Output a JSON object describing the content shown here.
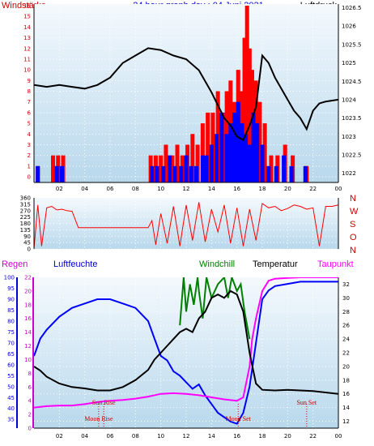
{
  "header": {
    "left_label": "Windstärke",
    "title": "24 hour graph day : 04 Juni 2021",
    "right_label": "Luftdruck"
  },
  "colors": {
    "background_top": "#f4f9fd",
    "background_bottom": "#b8d8ec",
    "gust": "#ff0000",
    "wind": "#0000ff",
    "pressure": "#000000",
    "dir": "#ff0000",
    "humidity": "#0000ff",
    "temperature": "#000000",
    "dewpoint": "#ff00ff",
    "windchill": "#008000",
    "grid": "#ffffff",
    "annotation": "#cc0000"
  },
  "panel3_labels": {
    "rain": "Regen",
    "humidity": "Luftfeuchte",
    "windchill": "Windchill",
    "temperature": "Temperatur",
    "dewpoint": "Taupunkt"
  },
  "compass_labels": [
    "N",
    "W",
    "S",
    "O",
    "N"
  ],
  "annotations": {
    "moon_rise": "Moon Rise",
    "sun_rise": "Sun Rise",
    "moon_set": "Moon Set",
    "sun_set": "Sun Set"
  },
  "chart_data": [
    {
      "type": "line",
      "name": "wind-pressure",
      "title": "24 hour graph day : 04 Juni 2021",
      "x_ticks": [
        "02",
        "04",
        "06",
        "08",
        "10",
        "12",
        "14",
        "16",
        "18",
        "20",
        "22",
        "00"
      ],
      "x_range_hours": [
        0,
        24
      ],
      "left_axis": {
        "label": "Windstärke",
        "range": [
          0,
          16
        ],
        "ticks": [
          0,
          1,
          2,
          3,
          4,
          5,
          6,
          7,
          8,
          9,
          10,
          11,
          12,
          13,
          14,
          15,
          16
        ]
      },
      "right_axis": {
        "label": "Luftdruck",
        "range": [
          1021.75,
          1026.6
        ],
        "ticks": [
          1022,
          1022.5,
          1023,
          1023.5,
          1024,
          1024.5,
          1025,
          1025.5,
          1026,
          1026.5
        ]
      },
      "series": [
        {
          "name": "Windstärke",
          "axis": "left",
          "style": "bars",
          "x": [
            0.3,
            1.8,
            2.2,
            9.3,
            9.7,
            10.2,
            10.7,
            11.1,
            11.6,
            12.0,
            12.4,
            12.8,
            13.3,
            13.6,
            14.0,
            14.4,
            14.8,
            15.2,
            15.5,
            15.8,
            16.1,
            16.4,
            16.7,
            17.0,
            17.3,
            17.6,
            18.0,
            18.5,
            19.1,
            19.7,
            20.3,
            21.4
          ],
          "values": [
            1,
            1,
            1,
            1,
            1,
            1,
            2,
            1,
            1,
            2,
            1,
            1,
            2,
            2,
            3,
            4,
            6,
            4,
            5,
            6,
            7,
            5,
            4,
            3,
            6,
            5,
            3,
            1,
            1,
            2,
            1,
            1
          ]
        },
        {
          "name": "Böen",
          "axis": "left",
          "style": "bars",
          "x": [
            0.3,
            1.5,
            1.9,
            2.3,
            9.2,
            9.6,
            10.0,
            10.4,
            10.9,
            11.3,
            11.7,
            12.1,
            12.5,
            12.9,
            13.3,
            13.7,
            14.1,
            14.5,
            14.9,
            15.2,
            15.5,
            15.8,
            16.1,
            16.4,
            16.6,
            16.8,
            17.0,
            17.2,
            17.5,
            17.8,
            18.2,
            18.7,
            19.2,
            19.8,
            20.4,
            21.5
          ],
          "values": [
            1,
            2,
            2,
            2,
            2,
            2,
            2,
            3,
            2,
            3,
            2,
            3,
            4,
            3,
            5,
            6,
            6,
            8,
            6,
            8,
            9,
            7,
            10,
            8,
            13,
            16,
            12,
            10,
            9,
            7,
            5,
            2,
            2,
            3,
            2,
            1
          ]
        },
        {
          "name": "Luftdruck",
          "axis": "right",
          "style": "line",
          "x": [
            0,
            1,
            2,
            3,
            4,
            5,
            6,
            7,
            8,
            9,
            10,
            11,
            12,
            13,
            14,
            15,
            15.5,
            16,
            16.5,
            17,
            17.5,
            18,
            18.5,
            19,
            19.5,
            20,
            20.5,
            21,
            21.5,
            22,
            22.5,
            23,
            24
          ],
          "values": [
            1024.4,
            1024.35,
            1024.4,
            1024.35,
            1024.3,
            1024.4,
            1024.6,
            1025.0,
            1025.2,
            1025.4,
            1025.35,
            1025.2,
            1025.1,
            1024.8,
            1024.2,
            1023.5,
            1023.3,
            1023.0,
            1022.9,
            1023.3,
            1023.8,
            1025.2,
            1025.0,
            1024.6,
            1024.3,
            1024.0,
            1023.7,
            1023.5,
            1023.2,
            1023.7,
            1023.9,
            1023.95,
            1024.0
          ]
        }
      ]
    },
    {
      "type": "line",
      "name": "wind-direction",
      "x_range_hours": [
        0,
        24
      ],
      "left_axis": {
        "range": [
          0,
          360
        ],
        "ticks": [
          0,
          45,
          90,
          135,
          180,
          225,
          270,
          315,
          360
        ]
      },
      "right_labels": [
        "N",
        "W",
        "S",
        "O",
        "N"
      ],
      "series": [
        {
          "name": "Windrichtung",
          "x": [
            0,
            0.3,
            0.6,
            1.0,
            1.4,
            1.8,
            2.2,
            2.6,
            3.0,
            3.5,
            4,
            5,
            6,
            7,
            8,
            9,
            9.3,
            9.6,
            10,
            10.5,
            11,
            11.5,
            12,
            12.5,
            13,
            13.5,
            14,
            14.5,
            15,
            15.5,
            16,
            16.5,
            17,
            17.5,
            18,
            18.5,
            19,
            19.5,
            20,
            20.5,
            21,
            21.5,
            22,
            22.5,
            23,
            23.5,
            24
          ],
          "values": [
            0,
            310,
            20,
            290,
            300,
            275,
            280,
            270,
            265,
            150,
            150,
            150,
            150,
            150,
            150,
            150,
            200,
            30,
            250,
            40,
            300,
            20,
            310,
            60,
            330,
            50,
            280,
            120,
            310,
            40,
            290,
            20,
            280,
            60,
            320,
            290,
            300,
            270,
            285,
            310,
            300,
            280,
            290,
            20,
            300,
            300,
            310
          ]
        }
      ]
    },
    {
      "type": "line",
      "name": "climate",
      "x_ticks": [
        "02",
        "04",
        "06",
        "08",
        "10",
        "12",
        "14",
        "16",
        "18",
        "20",
        "22",
        "00"
      ],
      "x_range_hours": [
        0,
        24
      ],
      "rain_axis": {
        "label": "Regen",
        "range": [
          0,
          22
        ],
        "ticks": [
          0,
          2,
          4,
          6,
          8,
          10,
          12,
          14,
          16,
          18,
          20,
          22
        ]
      },
      "humidity_axis": {
        "label": "Luftfeuchte",
        "range": [
          31,
          100
        ],
        "ticks": [
          35,
          40,
          45,
          50,
          55,
          60,
          65,
          70,
          75,
          80,
          85,
          90,
          95,
          100
        ]
      },
      "temperature_axis": {
        "label": "Temperatur",
        "range": [
          11,
          33
        ],
        "ticks": [
          12,
          14,
          16,
          18,
          20,
          22,
          24,
          26,
          28,
          30,
          32
        ]
      },
      "annotations": [
        {
          "label": "Moon Rise",
          "hour": 5.1
        },
        {
          "label": "Sun Rise",
          "hour": 5.5
        },
        {
          "label": "Moon Set",
          "hour": 16.1
        },
        {
          "label": "Sun Set",
          "hour": 21.5
        }
      ],
      "series": [
        {
          "name": "Luftfeuchte",
          "axis": "humidity",
          "x": [
            0,
            0.5,
            1,
            2,
            3,
            4,
            5,
            6,
            7,
            8,
            9,
            9.5,
            10,
            10.5,
            11,
            11.5,
            12,
            12.5,
            13,
            13.5,
            14,
            14.5,
            15,
            15.5,
            16,
            16.5,
            17,
            17.5,
            18,
            18.5,
            19,
            20,
            21,
            22,
            23,
            24
          ],
          "values": [
            64,
            72,
            76,
            82,
            86,
            88,
            90,
            90,
            88,
            86,
            80,
            72,
            64,
            62,
            57,
            55,
            52,
            49,
            51,
            46,
            42,
            38,
            36,
            34,
            33,
            38,
            50,
            70,
            90,
            94,
            96,
            97,
            98,
            98,
            98,
            98
          ]
        },
        {
          "name": "Temperatur",
          "axis": "temperature",
          "x": [
            0,
            0.5,
            1,
            2,
            3,
            4,
            5,
            6,
            7,
            8,
            9,
            9.5,
            10,
            10.5,
            11,
            11.5,
            12,
            12.5,
            13,
            13.5,
            14,
            14.5,
            15,
            15.5,
            16,
            16.5,
            17,
            17.5,
            18,
            19,
            20,
            21,
            22,
            23,
            24
          ],
          "values": [
            20,
            19.4,
            18.5,
            17.5,
            17,
            16.8,
            16.5,
            16.5,
            17,
            18,
            19.5,
            21,
            22,
            23,
            24,
            25,
            25.5,
            25,
            27,
            28,
            30,
            30.5,
            30,
            31,
            30.5,
            28,
            22,
            17.5,
            16.6,
            16.5,
            16.6,
            16.5,
            16.4,
            16.2,
            16
          ]
        },
        {
          "name": "Windchill",
          "axis": "temperature",
          "x": [
            11.5,
            11.8,
            12,
            12.3,
            12.6,
            12.9,
            13,
            13.3,
            13.6,
            14,
            14.5,
            15,
            15.3,
            15.6,
            16,
            16.3,
            16.6,
            17
          ],
          "values": [
            26,
            33,
            28,
            32,
            29,
            33,
            31,
            27,
            33,
            30,
            32,
            33,
            30,
            33,
            31,
            32,
            28,
            24
          ]
        },
        {
          "name": "Taupunkt",
          "axis": "temperature",
          "x": [
            0,
            1,
            2,
            3,
            4,
            5,
            6,
            7,
            8,
            9,
            10,
            11,
            12,
            13,
            14,
            15,
            16,
            16.5,
            17,
            17.2,
            17.5,
            18,
            18.5,
            19,
            20,
            21,
            22,
            23,
            24
          ],
          "values": [
            14,
            14.2,
            14.3,
            14.3,
            14.5,
            14.8,
            15,
            15.1,
            15.3,
            15.6,
            16,
            16.1,
            16,
            15.8,
            15.5,
            15.2,
            15,
            15.5,
            20,
            24,
            27,
            31,
            32.5,
            32.8,
            32.9,
            33,
            33,
            33,
            33
          ]
        }
      ]
    }
  ]
}
